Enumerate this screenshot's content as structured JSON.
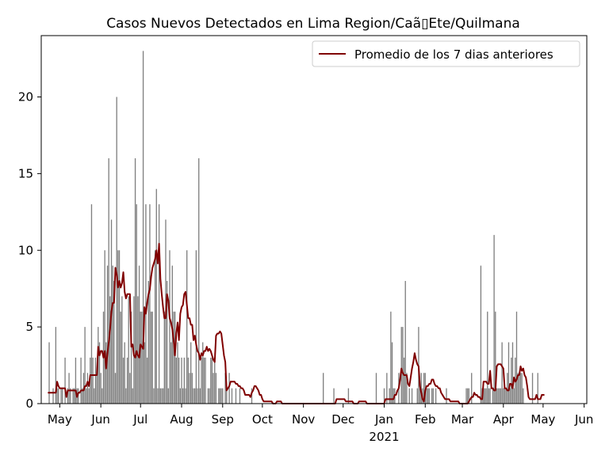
{
  "chart_data": {
    "type": "bar",
    "title": "Casos Nuevos Detectados en Lima Region/Caã▯Ete/Quilmana",
    "xlabel": "",
    "ylabel": "",
    "ylim": [
      0,
      24
    ],
    "yticks": [
      0,
      5,
      10,
      15,
      20
    ],
    "x_tick_labels": [
      "May",
      "Jun",
      "Jul",
      "Aug",
      "Sep",
      "Oct",
      "Nov",
      "Dec",
      "Jan",
      "Feb",
      "Mar",
      "Apr",
      "May",
      "Jun"
    ],
    "x_tick_dates": [
      "2020-05-01",
      "2020-06-01",
      "2020-07-01",
      "2020-08-01",
      "2020-09-01",
      "2020-10-01",
      "2020-11-01",
      "2020-12-01",
      "2021-01-01",
      "2021-02-01",
      "2021-03-01",
      "2021-04-01",
      "2021-05-01",
      "2021-06-01"
    ],
    "year_label": "2021",
    "x_range": [
      "2020-04-17",
      "2021-06-03"
    ],
    "grid": false,
    "legend_position": "top-right",
    "bar_color": "#808080",
    "line_color": "#800000",
    "series": [
      {
        "kind": "bar",
        "start_date": "2020-04-22",
        "values": [
          0,
          4,
          0,
          0,
          1,
          0,
          5,
          1,
          1,
          0,
          1,
          1,
          0,
          3,
          0,
          1,
          2,
          1,
          0,
          1,
          1,
          3,
          1,
          1,
          0,
          3,
          1,
          2,
          5,
          1,
          2,
          1,
          3,
          13,
          3,
          1,
          3,
          2,
          5,
          4,
          2,
          1,
          6,
          10,
          4,
          9,
          16,
          7,
          12,
          9,
          8,
          2,
          20,
          10,
          10,
          6,
          7,
          3,
          4,
          1,
          3,
          7,
          2,
          6,
          1,
          7,
          16,
          13,
          7,
          9,
          6,
          6,
          23,
          4,
          13,
          3,
          8,
          13,
          6,
          6,
          1,
          10,
          14,
          1,
          13,
          1,
          1,
          1,
          6,
          12,
          8,
          1,
          10,
          4,
          9,
          6,
          6,
          3,
          4,
          3,
          1,
          3,
          1,
          3,
          1,
          10,
          3,
          2,
          4,
          2,
          1,
          1,
          10,
          1,
          16,
          1,
          3,
          4,
          3,
          3,
          0,
          1,
          1,
          3,
          3,
          2,
          3,
          2,
          0,
          1,
          1,
          1,
          1,
          0,
          2,
          1,
          0,
          2,
          0,
          1,
          0,
          0,
          1,
          0,
          0,
          1,
          0,
          0,
          0,
          0,
          0,
          0,
          0,
          0,
          1,
          0,
          0,
          0,
          0,
          0,
          0,
          0,
          0,
          0,
          0,
          0,
          0,
          0,
          0,
          0,
          0,
          0,
          0,
          0,
          0,
          0,
          0,
          0,
          0,
          0,
          0,
          0,
          0,
          0,
          0,
          0,
          0,
          0,
          0,
          0,
          0,
          0,
          0,
          0,
          0,
          0,
          0,
          0,
          0,
          0,
          0,
          0,
          0,
          0,
          0,
          0,
          0,
          0,
          2,
          0,
          0,
          0,
          0,
          0,
          0,
          0,
          1,
          0,
          0,
          0,
          0,
          0,
          0,
          0,
          0,
          0,
          0,
          1,
          0,
          0,
          0,
          0,
          0,
          0,
          0,
          0,
          0,
          0,
          0,
          0,
          0,
          0,
          0,
          0,
          0,
          0,
          0,
          0,
          2,
          0,
          0,
          0,
          0,
          0,
          1,
          0,
          2,
          0,
          1,
          6,
          4,
          1,
          1,
          0,
          0,
          2,
          0,
          5,
          5,
          3,
          8,
          2,
          0,
          1,
          0,
          1,
          0,
          0,
          0,
          1,
          5,
          1,
          2,
          1,
          2,
          2,
          1,
          1,
          1,
          0,
          1,
          1,
          0,
          1,
          0,
          0,
          0,
          0,
          0,
          0,
          0,
          1,
          0,
          0,
          0,
          0,
          0,
          0,
          0,
          0,
          0,
          0,
          0,
          0,
          0,
          0,
          1,
          1,
          1,
          0,
          2,
          0,
          0,
          0,
          0,
          0,
          0,
          9,
          1,
          1,
          1,
          1,
          6,
          1,
          1,
          0,
          1,
          11,
          6,
          1,
          1,
          1,
          1,
          4,
          1,
          1,
          1,
          2,
          4,
          1,
          3,
          4,
          1,
          3,
          6,
          2,
          2,
          2,
          2,
          1,
          0,
          0,
          0,
          0,
          0,
          0,
          2,
          0,
          0,
          0,
          2,
          0,
          0
        ]
      },
      {
        "kind": "line",
        "name": "Promedio de los 7 dias anteriores",
        "start_date": "2020-04-22",
        "values": [
          0.71,
          0.71,
          0.71,
          0.71,
          0.71,
          0.71,
          0.71,
          1.43,
          1.14,
          1.0,
          1.0,
          1.0,
          1.0,
          1.0,
          0.43,
          0.86,
          0.86,
          0.86,
          0.86,
          0.86,
          0.86,
          0.86,
          0.43,
          0.71,
          0.71,
          0.86,
          0.86,
          0.86,
          1.14,
          1.14,
          1.43,
          1.14,
          1.86,
          1.86,
          1.86,
          1.86,
          1.86,
          1.86,
          3.71,
          3.14,
          3.43,
          3.43,
          3.0,
          3.43,
          2.29,
          3.29,
          4.0,
          4.86,
          6.0,
          6.57,
          6.57,
          8.86,
          8.43,
          7.57,
          8.0,
          7.57,
          7.86,
          8.57,
          7.29,
          6.86,
          7.14,
          7.14,
          7.14,
          3.71,
          3.86,
          3.14,
          3.0,
          3.43,
          3.14,
          3.0,
          3.86,
          3.71,
          3.57,
          6.29,
          5.86,
          6.57,
          7.14,
          7.43,
          8.29,
          8.86,
          9.14,
          9.43,
          10.0,
          9.14,
          10.43,
          8.14,
          7.14,
          6.29,
          5.57,
          5.57,
          7.14,
          6.71,
          5.57,
          5.29,
          4.86,
          4.14,
          3.14,
          4.57,
          5.29,
          4.14,
          5.86,
          6.29,
          6.43,
          7.14,
          7.29,
          6.43,
          5.57,
          5.57,
          5.14,
          5.14,
          4.14,
          4.43,
          3.86,
          3.43,
          3.29,
          2.86,
          3.29,
          3.14,
          3.43,
          3.43,
          3.71,
          3.43,
          3.57,
          3.43,
          3.14,
          2.86,
          2.71,
          4.43,
          4.57,
          4.57,
          4.71,
          4.57,
          3.86,
          3.14,
          2.71,
          0.86,
          1.0,
          1.14,
          1.43,
          1.43,
          1.43,
          1.43,
          1.29,
          1.29,
          1.14,
          1.14,
          1.0,
          1.0,
          0.86,
          0.57,
          0.57,
          0.57,
          0.57,
          0.43,
          0.71,
          0.86,
          1.14,
          1.14,
          1.0,
          0.86,
          0.57,
          0.57,
          0.29,
          0.14,
          0.14,
          0.14,
          0.14,
          0.14,
          0.14,
          0.14,
          0.0,
          0.0,
          0.0,
          0.14,
          0.14,
          0.14,
          0.14,
          0.0,
          0.0,
          0.0,
          0.0,
          0.0,
          0.0,
          0.0,
          0.0,
          0.0,
          0.0,
          0.0,
          0.0,
          0.0,
          0.0,
          0.0,
          0.0,
          0.0,
          0.0,
          0.0,
          0.0,
          0.0,
          0.0,
          0.0,
          0.0,
          0.0,
          0.0,
          0.0,
          0.0,
          0.0,
          0.0,
          0.0,
          0.0,
          0.0,
          0.0,
          0.0,
          0.0,
          0.0,
          0.0,
          0.0,
          0.0,
          0.0,
          0.29,
          0.29,
          0.29,
          0.29,
          0.29,
          0.29,
          0.29,
          0.14,
          0.14,
          0.14,
          0.14,
          0.14,
          0.14,
          0.0,
          0.0,
          0.0,
          0.0,
          0.14,
          0.14,
          0.14,
          0.14,
          0.14,
          0.14,
          0.0,
          0.0,
          0.0,
          0.0,
          0.0,
          0.0,
          0.0,
          0.0,
          0.0,
          0.0,
          0.0,
          0.0,
          0.0,
          0.0,
          0.29,
          0.29,
          0.29,
          0.29,
          0.29,
          0.29,
          0.29,
          0.57,
          0.57,
          0.86,
          1.0,
          1.57,
          2.29,
          2.0,
          1.86,
          1.86,
          1.86,
          1.29,
          1.14,
          1.71,
          2.29,
          2.71,
          3.29,
          2.86,
          2.57,
          2.43,
          1.14,
          0.71,
          0.29,
          0.14,
          0.86,
          1.14,
          1.14,
          1.29,
          1.29,
          1.57,
          1.57,
          1.29,
          1.14,
          1.14,
          1.0,
          1.0,
          0.71,
          0.57,
          0.43,
          0.29,
          0.29,
          0.29,
          0.29,
          0.14,
          0.14,
          0.14,
          0.14,
          0.14,
          0.14,
          0.14,
          0.0,
          0.0,
          0.0,
          0.0,
          0.0,
          0.0,
          0.0,
          0.14,
          0.29,
          0.43,
          0.43,
          0.71,
          0.57,
          0.57,
          0.43,
          0.43,
          0.29,
          0.29,
          1.43,
          1.43,
          1.43,
          1.29,
          1.29,
          2.14,
          1.0,
          1.0,
          0.86,
          0.86,
          2.43,
          2.57,
          2.57,
          2.57,
          2.43,
          2.29,
          1.0,
          1.0,
          0.86,
          0.86,
          1.29,
          1.29,
          1.0,
          1.71,
          1.43,
          1.57,
          1.86,
          1.86,
          2.43,
          2.14,
          2.29,
          1.86,
          1.71,
          1.14,
          0.43,
          0.29,
          0.29,
          0.29,
          0.29,
          0.29,
          0.57,
          0.29,
          0.29,
          0.29,
          0.57,
          0.57,
          0.57
        ]
      }
    ]
  }
}
